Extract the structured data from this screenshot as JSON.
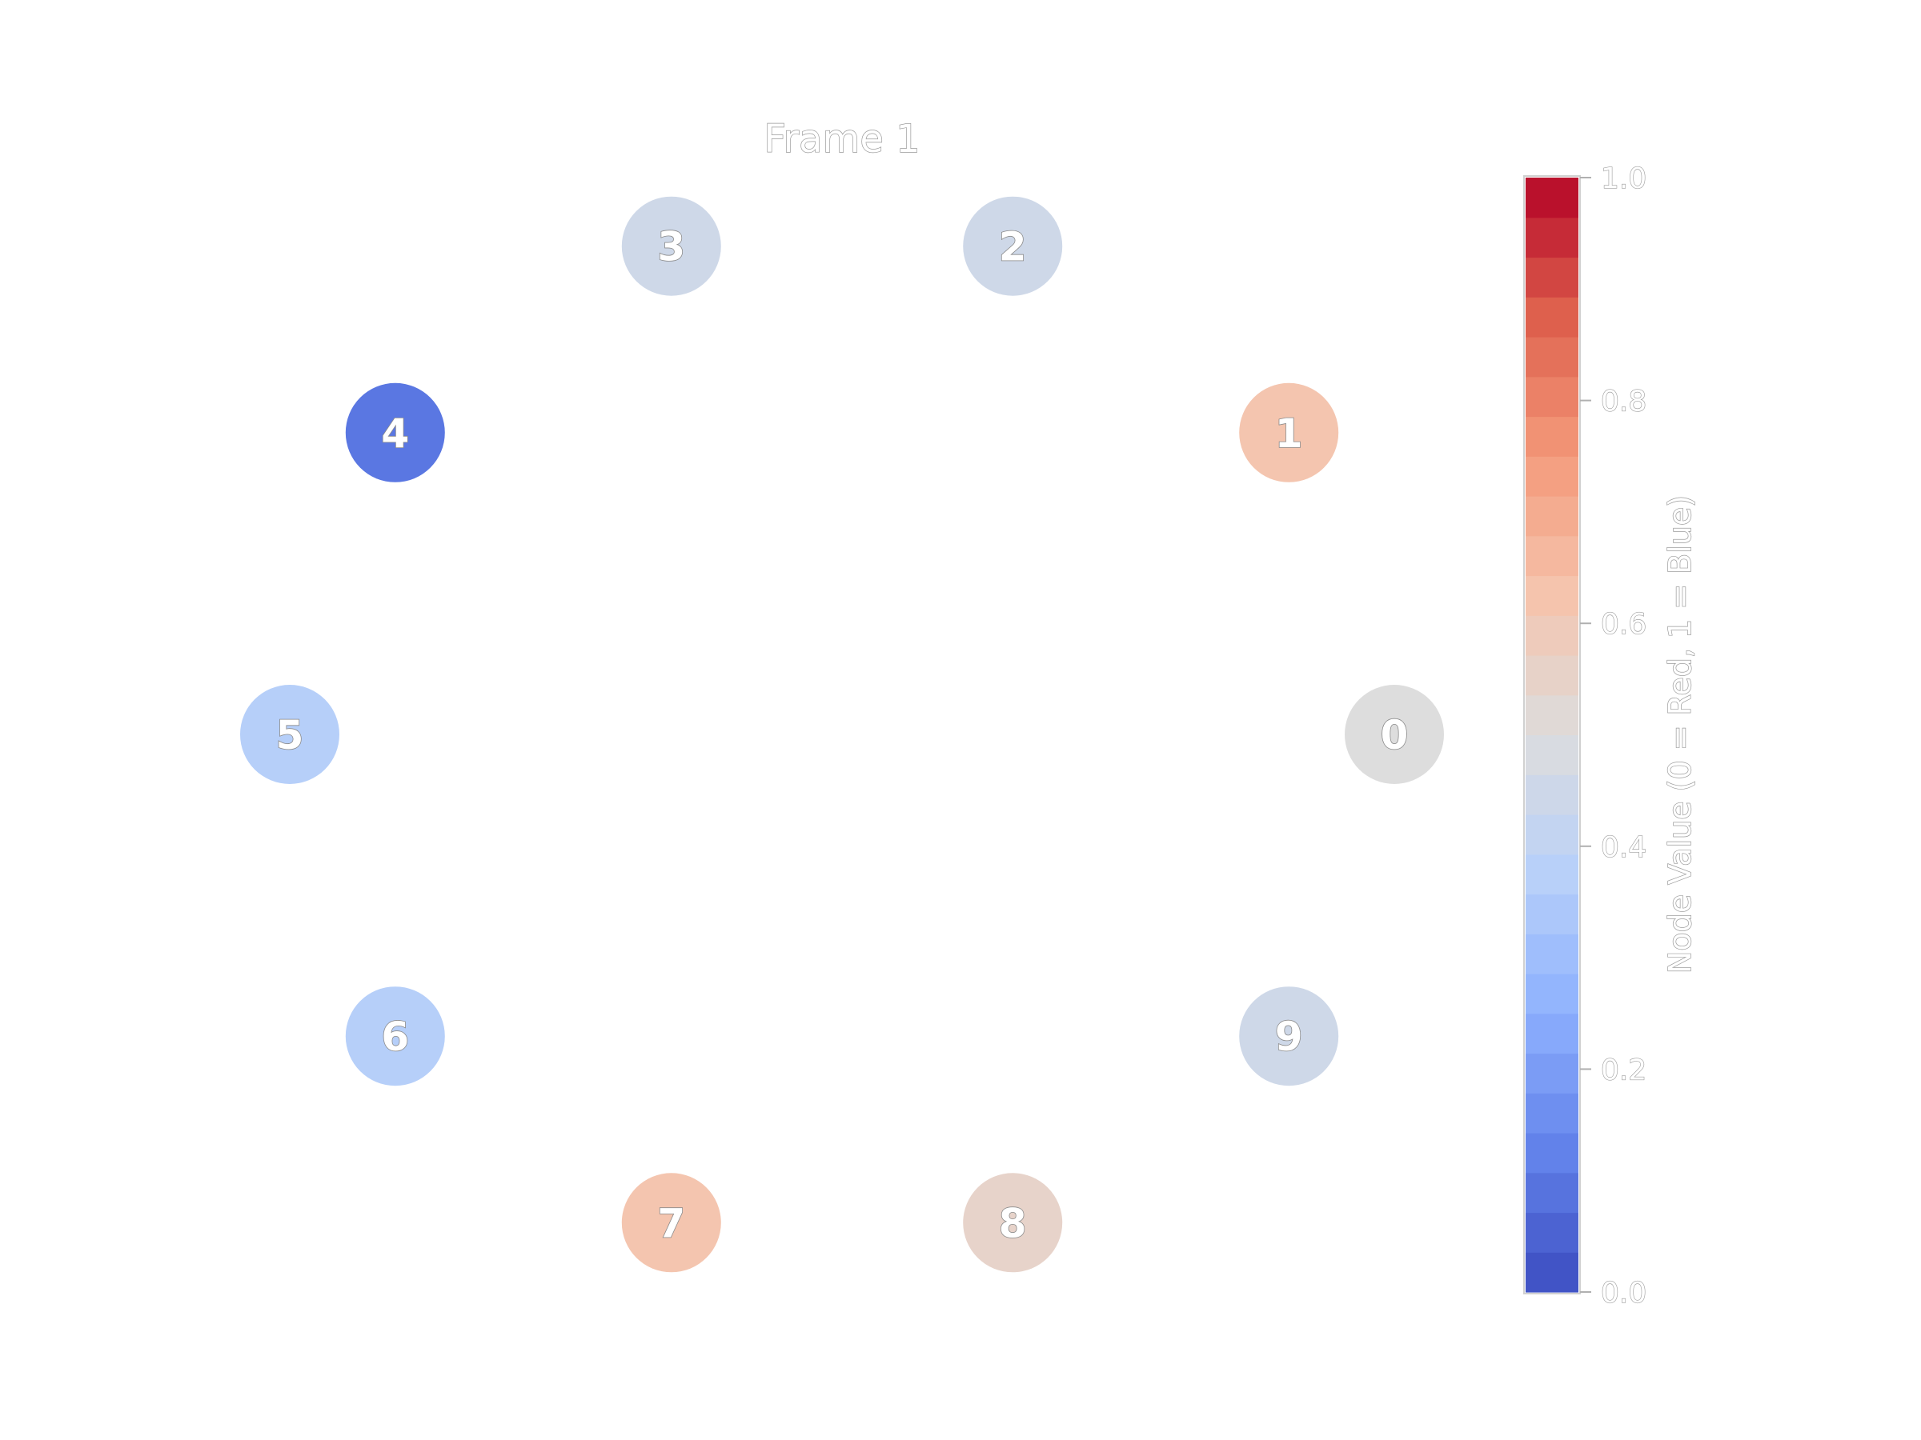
{
  "title": "Frame 1",
  "nodes": [
    {
      "id": "0",
      "value": 0.5
    },
    {
      "id": "1",
      "value": 0.38
    },
    {
      "id": "2",
      "value": 0.55
    },
    {
      "id": "3",
      "value": 0.55
    },
    {
      "id": "4",
      "value": 0.9
    },
    {
      "id": "5",
      "value": 0.63
    },
    {
      "id": "6",
      "value": 0.63
    },
    {
      "id": "7",
      "value": 0.38
    },
    {
      "id": "8",
      "value": 0.45
    },
    {
      "id": "9",
      "value": 0.55
    }
  ],
  "colorbar": {
    "label": "Node Value (0 = Red, 1 = Blue)",
    "min": 0.0,
    "max": 1.0,
    "ticks": [
      "0.0",
      "0.2",
      "0.4",
      "0.6",
      "0.8",
      "1.0"
    ],
    "colormap": "coolwarm",
    "levels": 28
  }
}
